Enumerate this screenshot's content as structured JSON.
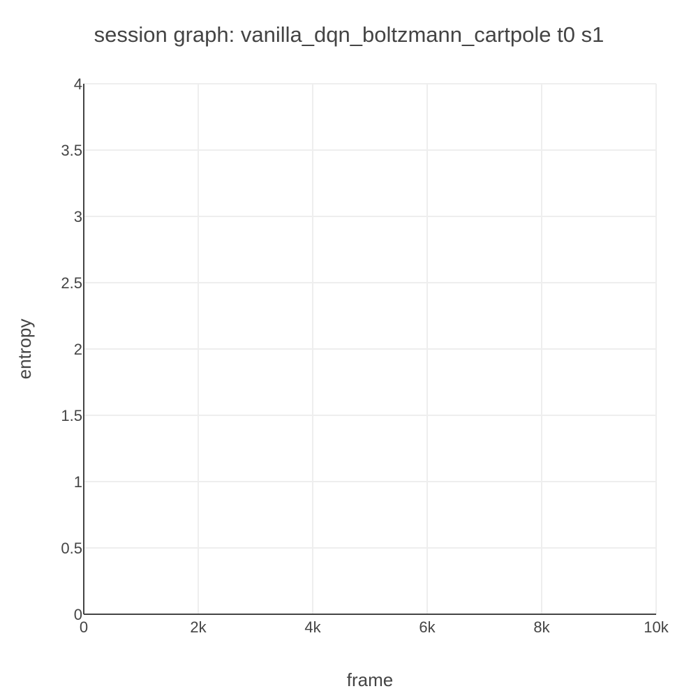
{
  "chart_data": {
    "type": "line",
    "title": "session graph: vanilla_dqn_boltzmann_cartpole t0 s1",
    "xlabel": "frame",
    "ylabel": "entropy",
    "xlim": [
      0,
      10000
    ],
    "ylim": [
      0,
      4
    ],
    "x_ticks": [
      0,
      2000,
      4000,
      6000,
      8000,
      10000
    ],
    "x_tick_labels": [
      "0",
      "2k",
      "4k",
      "6k",
      "8k",
      "10k"
    ],
    "y_ticks": [
      0,
      0.5,
      1,
      1.5,
      2,
      2.5,
      3,
      3.5,
      4
    ],
    "y_tick_labels": [
      "0",
      "0.5",
      "1",
      "1.5",
      "2",
      "2.5",
      "3",
      "3.5",
      "4"
    ],
    "grid": true,
    "series": []
  }
}
